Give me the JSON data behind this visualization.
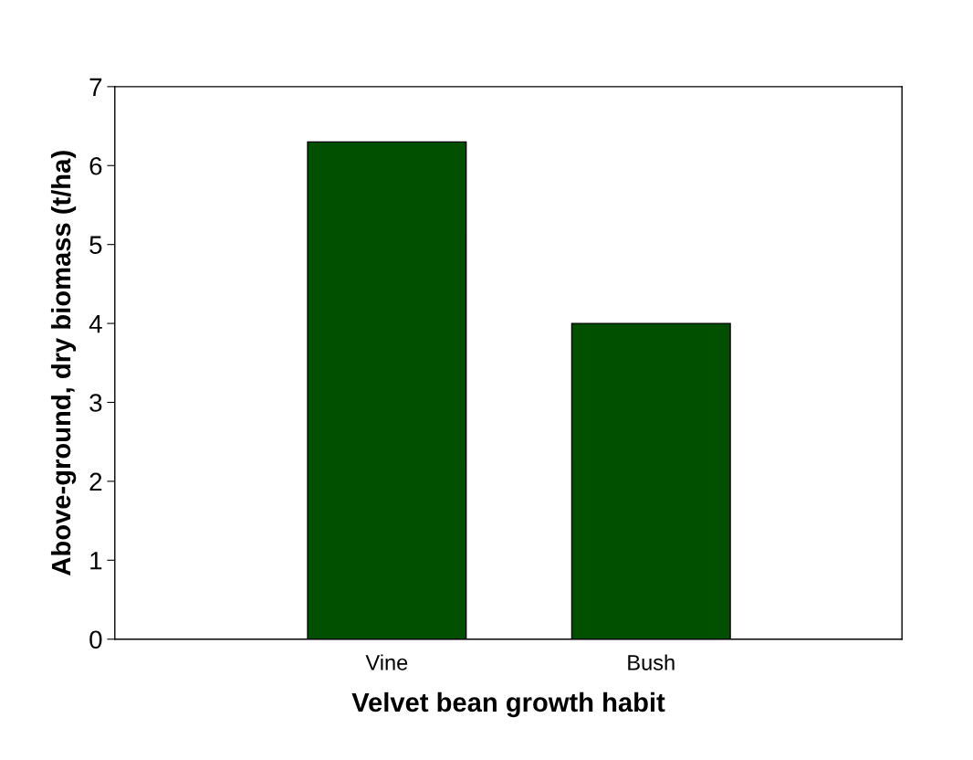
{
  "chart_data": {
    "type": "bar",
    "xlabel": "Velvet bean growth habit",
    "ylabel": "Above-ground, dry biomass (t/ha)",
    "categories": [
      "Vine",
      "Bush"
    ],
    "values": [
      6.3,
      4.0
    ],
    "color": "#005000",
    "ylim": [
      0,
      7
    ],
    "yticks": [
      0,
      1,
      2,
      3,
      4,
      5,
      6,
      7
    ],
    "grid": false,
    "legend": false
  }
}
